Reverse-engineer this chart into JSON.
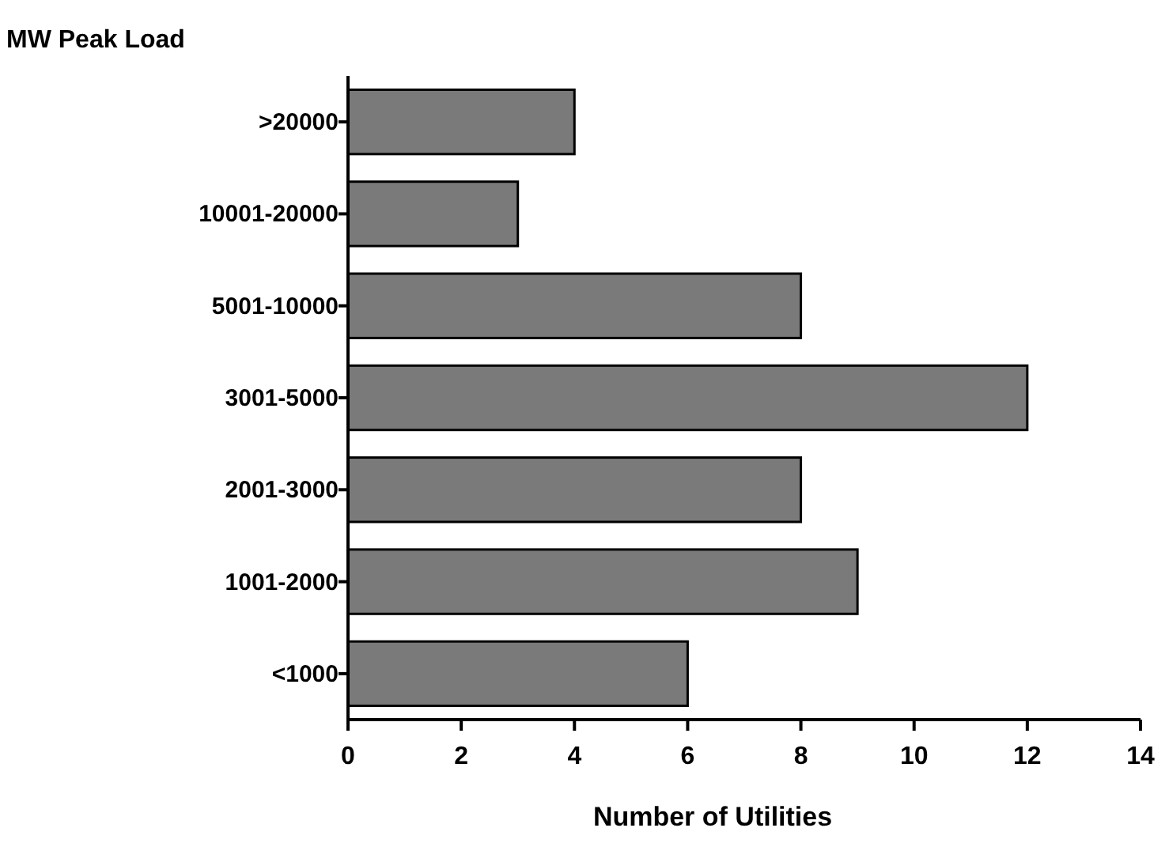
{
  "chart_data": {
    "type": "bar",
    "orientation": "horizontal",
    "ylabel": "MW Peak Load",
    "xlabel": "Number of Utilities",
    "categories": [
      ">20000",
      "10001-20000",
      "5001-10000",
      "3001-5000",
      "2001-3000",
      "1001-2000",
      "<1000"
    ],
    "values": [
      4,
      3,
      8,
      12,
      8,
      9,
      6
    ],
    "color": "#7a7a7a",
    "xlim": [
      0,
      14
    ],
    "xticks": [
      0,
      2,
      4,
      6,
      8,
      10,
      12,
      14
    ],
    "grid": false
  }
}
